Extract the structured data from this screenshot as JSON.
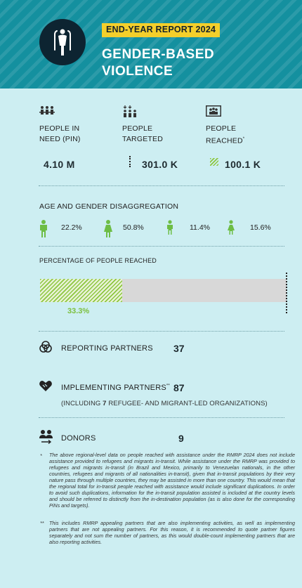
{
  "header": {
    "report_label": "END-YEAR REPORT 2024",
    "title": "GENDER-BASED VIOLENCE",
    "logo_icon": "gbv-sector-icon",
    "colors": {
      "background": "#14909f",
      "label_bg": "#f4cf2b",
      "logo_bg": "#0d2431"
    }
  },
  "stats": {
    "pin": {
      "icon": "people-group-icon",
      "label": "PEOPLE IN NEED (PIN)",
      "value": "4.10 M"
    },
    "targeted": {
      "icon": "people-targeted-icon",
      "label": "PEOPLE TARGETED",
      "value": "301.0 K"
    },
    "reached": {
      "icon": "people-reached-icon",
      "label": "PEOPLE REACHED",
      "label_mark": "*",
      "value": "100.1 K"
    }
  },
  "age_gender": {
    "title": "AGE AND GENDER DISAGGREGATION",
    "items": [
      {
        "icon": "man-icon",
        "value": "22.2%"
      },
      {
        "icon": "woman-icon",
        "value": "50.8%"
      },
      {
        "icon": "boy-icon",
        "value": "11.4%"
      },
      {
        "icon": "girl-icon",
        "value": "15.6%"
      }
    ],
    "icon_color": "#6dbd45"
  },
  "percentage": {
    "title": "PERCENTAGE OF PEOPLE REACHED",
    "value_label": "33.3%",
    "value": 0.333,
    "fill_color": "#8dc63f"
  },
  "partners": {
    "reporting": {
      "icon": "reporting-partners-icon",
      "label": "REPORTING PARTNERS",
      "value": "37"
    },
    "implementing": {
      "icon": "handshake-icon",
      "label": "IMPLEMENTING PARTNERS",
      "label_mark": "**",
      "value": "87",
      "note_prefix": "(INCLUDING",
      "note_number": "7",
      "note_suffix": "REFUGEE- AND MIGRANT-LED ORGANIZATIONS)"
    },
    "donors": {
      "icon": "donors-icon",
      "label": "DONORS",
      "value": "9"
    }
  },
  "footnotes": [
    {
      "mark": "*",
      "text": "The above regional-level data on people reached with assistance under the RMRP 2024 does not include assistance provided to refugees and migrants in-transit. While assistance under the RMRP was provided to refugees and migrants in-transit (in Brazil and Mexico, primarily to Venezuelan nationals, in the other countries, refugees and migrants of all nationalities in-transit), given that in-transit populations by their very nature pass through multiple countries, they may be assisted in more than one country. This would mean that the regional total for in-transit people reached with assistance would include significant duplications. In order to avoid such duplications, information for the in-transit population assisted is included at the country levels and should be referred to distinctly from the in-destination population (as is also done for the corresponding PiNs and targets)."
    },
    {
      "mark": "**",
      "text": "This includes RMRP appealing partners that are also implementing activities, as well as implementing partners that are not appealing partners. For this reason, it is recommended to quote partner figures separately and not sum the number of partners, as this would double-count implementing partners that are also reporting activities."
    }
  ]
}
